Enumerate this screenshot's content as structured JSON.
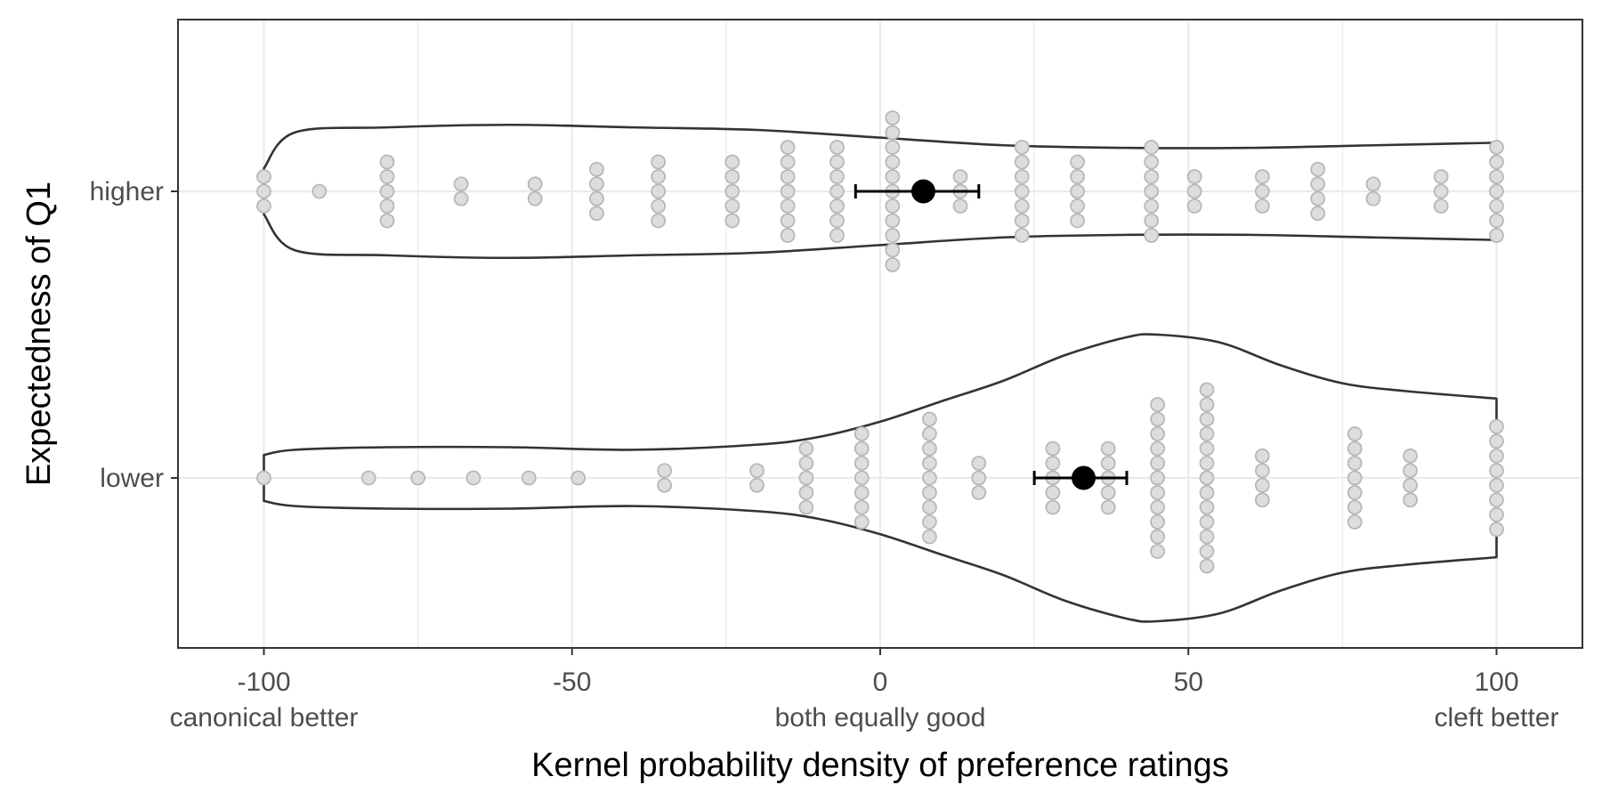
{
  "chart_data": {
    "type": "violin",
    "xlabel": "Kernel probability density of preference ratings",
    "ylabel": "Expectedness of Q1",
    "xlim": [
      -115,
      115
    ],
    "x_ticks": [
      -100,
      -50,
      0,
      50,
      100
    ],
    "x_tick_labels": [
      "-100",
      "-50",
      "0",
      "50",
      "100"
    ],
    "x_tick_sublabels": [
      {
        "x": -100,
        "text": "canonical better"
      },
      {
        "x": 0,
        "text": "both equally good"
      },
      {
        "x": 100,
        "text": "cleft better"
      }
    ],
    "categories": [
      "higher",
      "lower"
    ],
    "grid": true,
    "colors": {
      "violin_outline": "#333333",
      "dot_fill": "#dddddd",
      "dot_stroke": "#b8b8b8",
      "mean": "#000000",
      "grid": "#ebebeb"
    },
    "groups": [
      {
        "category": "higher",
        "mean": 7,
        "ci": [
          -4,
          16
        ],
        "violin": [
          [
            -100,
            0.09
          ],
          [
            -95,
            0.23
          ],
          [
            -80,
            0.25
          ],
          [
            -60,
            0.26
          ],
          [
            -40,
            0.25
          ],
          [
            -20,
            0.24
          ],
          [
            0,
            0.21
          ],
          [
            20,
            0.18
          ],
          [
            40,
            0.17
          ],
          [
            60,
            0.17
          ],
          [
            80,
            0.18
          ],
          [
            100,
            0.19
          ]
        ],
        "dots": [
          {
            "x": -100,
            "n": 3
          },
          {
            "x": -91,
            "n": 1
          },
          {
            "x": -80,
            "n": 5
          },
          {
            "x": -68,
            "n": 2
          },
          {
            "x": -56,
            "n": 2
          },
          {
            "x": -46,
            "n": 4
          },
          {
            "x": -36,
            "n": 5
          },
          {
            "x": -24,
            "n": 5
          },
          {
            "x": -15,
            "n": 7
          },
          {
            "x": -7,
            "n": 7
          },
          {
            "x": 2,
            "n": 11
          },
          {
            "x": 13,
            "n": 3
          },
          {
            "x": 23,
            "n": 7
          },
          {
            "x": 32,
            "n": 5
          },
          {
            "x": 44,
            "n": 7
          },
          {
            "x": 51,
            "n": 3
          },
          {
            "x": 62,
            "n": 3
          },
          {
            "x": 71,
            "n": 4
          },
          {
            "x": 80,
            "n": 2
          },
          {
            "x": 91,
            "n": 3
          },
          {
            "x": 100,
            "n": 7
          }
        ]
      },
      {
        "category": "lower",
        "mean": 33,
        "ci": [
          25,
          40
        ],
        "violin": [
          [
            -100,
            0.09
          ],
          [
            -95,
            0.11
          ],
          [
            -80,
            0.12
          ],
          [
            -60,
            0.12
          ],
          [
            -40,
            0.11
          ],
          [
            -20,
            0.13
          ],
          [
            -10,
            0.16
          ],
          [
            0,
            0.22
          ],
          [
            10,
            0.3
          ],
          [
            20,
            0.38
          ],
          [
            30,
            0.48
          ],
          [
            40,
            0.55
          ],
          [
            45,
            0.56
          ],
          [
            55,
            0.53
          ],
          [
            65,
            0.44
          ],
          [
            75,
            0.37
          ],
          [
            85,
            0.34
          ],
          [
            100,
            0.31
          ]
        ],
        "dots": [
          {
            "x": -100,
            "n": 1
          },
          {
            "x": -83,
            "n": 1
          },
          {
            "x": -75,
            "n": 1
          },
          {
            "x": -66,
            "n": 1
          },
          {
            "x": -57,
            "n": 1
          },
          {
            "x": -49,
            "n": 1
          },
          {
            "x": -35,
            "n": 2
          },
          {
            "x": -20,
            "n": 2
          },
          {
            "x": -12,
            "n": 5
          },
          {
            "x": -3,
            "n": 7
          },
          {
            "x": 8,
            "n": 9
          },
          {
            "x": 16,
            "n": 3
          },
          {
            "x": 28,
            "n": 5
          },
          {
            "x": 37,
            "n": 5
          },
          {
            "x": 45,
            "n": 11
          },
          {
            "x": 53,
            "n": 13
          },
          {
            "x": 62,
            "n": 4
          },
          {
            "x": 77,
            "n": 7
          },
          {
            "x": 86,
            "n": 4
          },
          {
            "x": 100,
            "n": 8
          }
        ]
      }
    ]
  }
}
